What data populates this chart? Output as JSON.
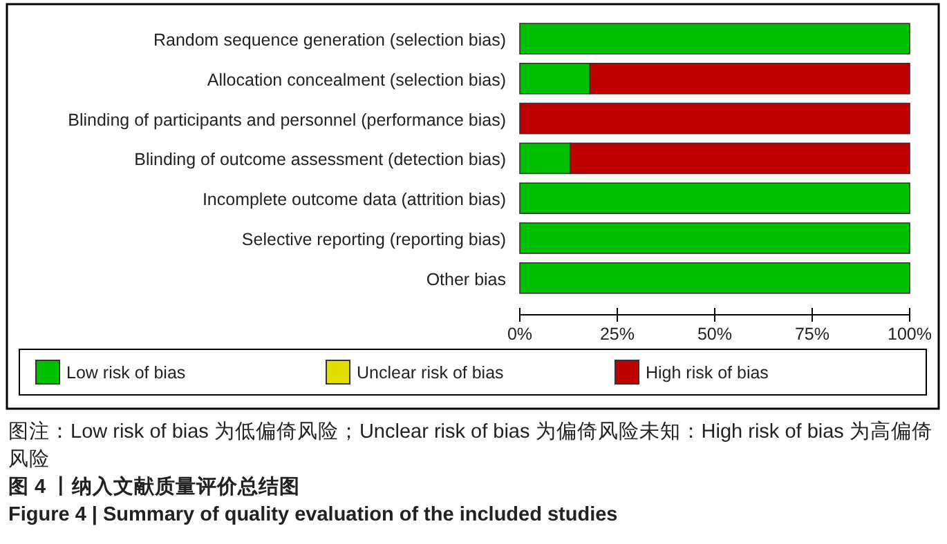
{
  "chart_data": {
    "type": "bar",
    "orientation": "horizontal",
    "stacked": true,
    "categories": [
      "Random sequence generation (selection bias)",
      "Allocation concealment (selection bias)",
      "Blinding of participants and personnel (performance bias)",
      "Blinding of outcome assessment (detection bias)",
      "Incomplete outcome data (attrition bias)",
      "Selective reporting (reporting bias)",
      "Other bias"
    ],
    "series": [
      {
        "name": "Low risk of bias",
        "color": "#00c000",
        "values": [
          100,
          18,
          0,
          13,
          100,
          100,
          100
        ]
      },
      {
        "name": "Unclear risk of bias",
        "color": "#e0e000",
        "values": [
          0,
          0,
          0,
          0,
          0,
          0,
          0
        ]
      },
      {
        "name": "High risk of bias",
        "color": "#c00000",
        "values": [
          0,
          82,
          100,
          87,
          0,
          0,
          0
        ]
      }
    ],
    "xlim": [
      0,
      100
    ],
    "xticks": [
      {
        "value": 0,
        "label": "0%"
      },
      {
        "value": 25,
        "label": "25%"
      },
      {
        "value": 50,
        "label": "50%"
      },
      {
        "value": 75,
        "label": "75%"
      },
      {
        "value": 100,
        "label": "100%"
      }
    ],
    "legend": "bottom",
    "grid": false,
    "annotations": [
      "图注：Low risk of bias 为低偏倚风险；Unclear risk of bias 为偏倚风险未知：High risk of bias 为高偏倚风险",
      "图 4 丨纳入文献质量评价总结图",
      "Figure 4 | Summary of quality evaluation of the included studies"
    ]
  }
}
